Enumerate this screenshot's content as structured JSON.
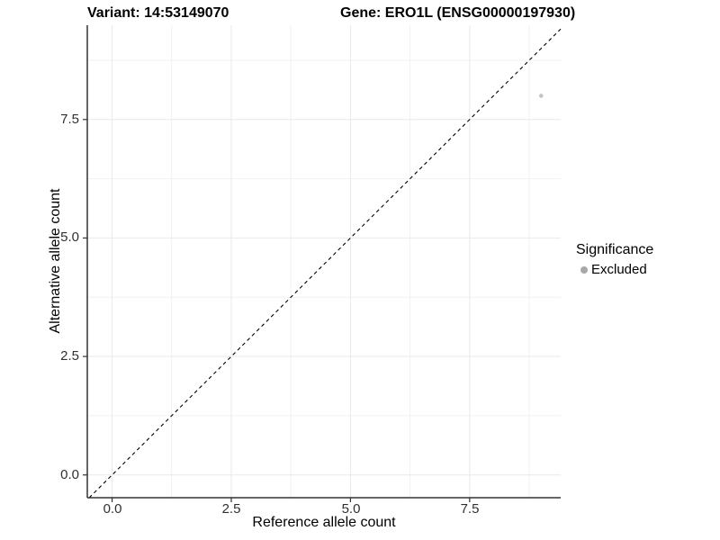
{
  "header": {
    "variant_title": "Variant: 14:53149070",
    "gene_title": "Gene: ERO1L (ENSG00000197930)"
  },
  "axes": {
    "x": {
      "label": "Reference allele count",
      "ticks": [
        "0.0",
        "2.5",
        "5.0",
        "7.5"
      ]
    },
    "y": {
      "label": "Alternative allele count",
      "ticks": [
        "0.0",
        "2.5",
        "5.0",
        "7.5"
      ]
    }
  },
  "legend": {
    "title": "Significance",
    "items": [
      {
        "label": "Excluded",
        "key_color": "#a8a8a8"
      }
    ]
  },
  "colors": {
    "background": "#ffffff",
    "grid_major": "#e9e9e9",
    "grid_minor": "#f1f1f1",
    "axis_line": "#333333",
    "tick_text": "#303030",
    "reference_line": "#000000",
    "point": "#c4c4c4"
  },
  "chart_data": {
    "type": "scatter",
    "title": "Variant: 14:53149070 | Gene: ERO1L (ENSG00000197930)",
    "xlabel": "Reference allele count",
    "ylabel": "Alternative allele count",
    "xlim": [
      -0.52,
      9.41
    ],
    "ylim": [
      -0.48,
      9.49
    ],
    "x_ticks": [
      0,
      2.5,
      5,
      7.5
    ],
    "y_ticks": [
      0,
      2.5,
      5,
      7.5
    ],
    "x_minor_ticks": [
      1.25,
      3.75,
      6.25,
      8.75
    ],
    "y_minor_ticks": [
      1.25,
      3.75,
      6.25,
      8.75
    ],
    "grid": "major and minor gridlines, white background",
    "series": [
      {
        "name": "Excluded",
        "color": "#c4c4c4",
        "points": [
          {
            "x": 9,
            "y": 8
          }
        ]
      }
    ],
    "reference_line": {
      "equation": "y = x",
      "style": "dashed",
      "from": [
        -0.48,
        -0.48
      ],
      "to": [
        9.41,
        9.41
      ]
    },
    "legend": {
      "title": "Significance",
      "position": "right-middle"
    }
  }
}
